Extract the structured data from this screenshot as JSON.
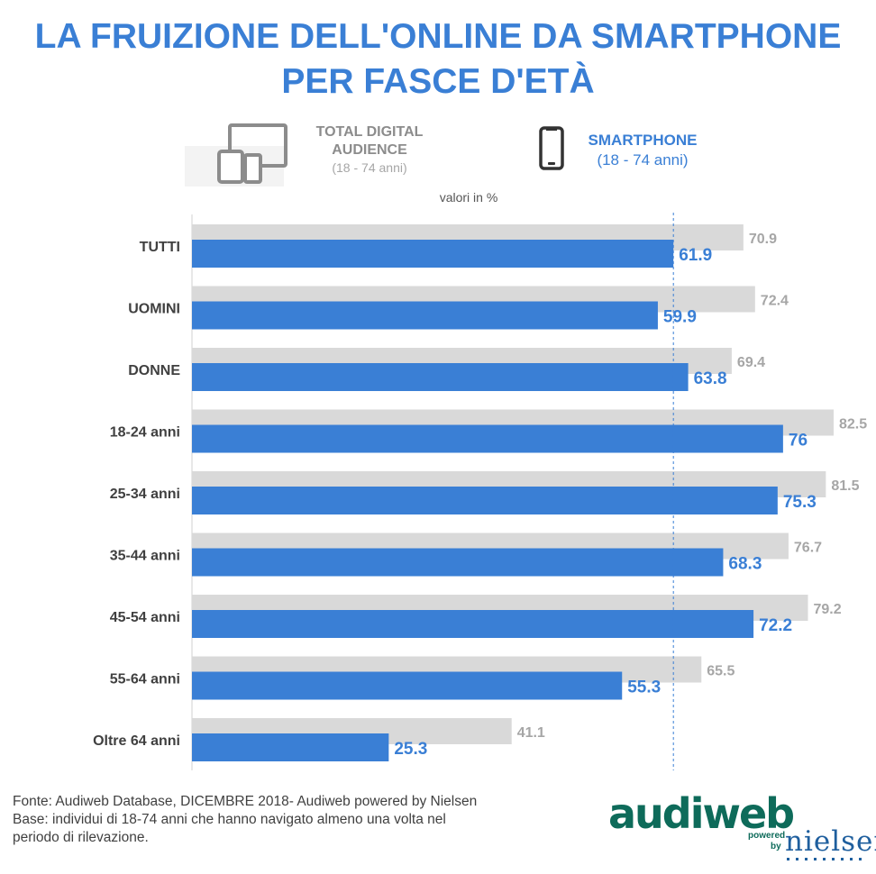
{
  "title_line1": "LA FRUIZIONE DELL'ONLINE DA SMARTPHONE",
  "title_line2": "PER FASCE D'ETÀ",
  "legend": {
    "total": {
      "line1": "TOTAL DIGITAL",
      "line2": "AUDIENCE",
      "line3": "(18 - 74 anni)",
      "color": "#d9d9d9",
      "icon": "devices-icon"
    },
    "smartphone": {
      "line1": "SMARTPHONE",
      "line2": "(18 - 74 anni)",
      "color": "#3a7fd5",
      "icon": "smartphone-icon"
    }
  },
  "unit_note": "valori in %",
  "chart_data": {
    "type": "bar",
    "orientation": "horizontal",
    "categories": [
      "TUTTI",
      "UOMINI",
      "DONNE",
      "18-24 anni",
      "25-34 anni",
      "35-44 anni",
      "45-54 anni",
      "55-64 anni",
      "Oltre 64 anni"
    ],
    "series": [
      {
        "name": "TOTAL DIGITAL AUDIENCE (18 - 74 anni)",
        "color": "#d9d9d9",
        "label_color": "#a6a6a6",
        "values": [
          70.9,
          72.4,
          69.4,
          82.5,
          81.5,
          76.7,
          79.2,
          65.5,
          41.1
        ]
      },
      {
        "name": "SMARTPHONE (18 - 74 anni)",
        "color": "#3a7fd5",
        "label_color": "#3a7fd5",
        "values": [
          61.9,
          59.9,
          63.8,
          76,
          75.3,
          68.3,
          72.2,
          55.3,
          25.3
        ]
      }
    ],
    "reference_line_value": 61.9,
    "xlim": [
      0,
      100
    ]
  },
  "footer": {
    "line1": "Fonte: Audiweb Database, DICEMBRE 2018- Audiweb powered by Nielsen",
    "line2": "Base: individui di 18-74 anni che hanno navigato almeno una volta nel",
    "line3": "periodo di rilevazione."
  },
  "logo": {
    "audiweb": "audiweb",
    "powered": "powered",
    "by": "by",
    "nielsen": "nielsen"
  }
}
